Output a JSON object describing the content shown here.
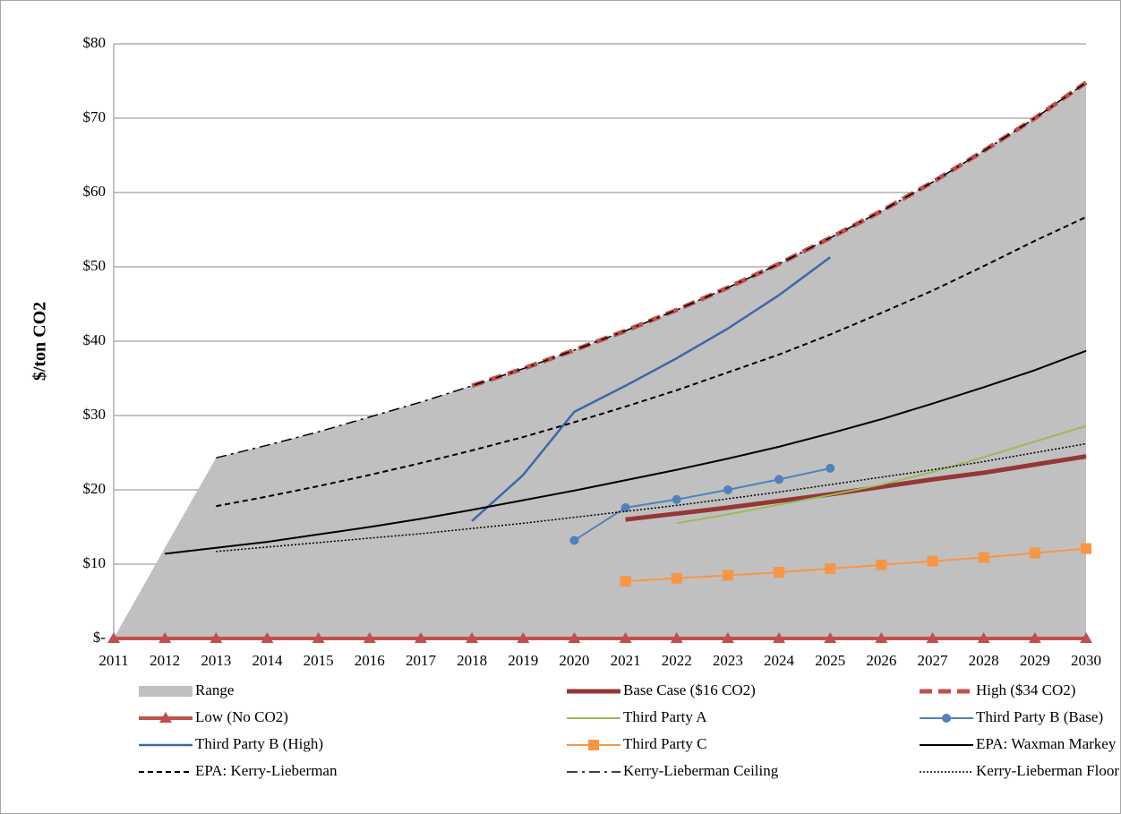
{
  "chart_data": {
    "type": "line",
    "y_label": "$/ton CO2",
    "categories": [
      "2011",
      "2012",
      "2013",
      "2014",
      "2015",
      "2016",
      "2017",
      "2018",
      "2019",
      "2020",
      "2021",
      "2022",
      "2023",
      "2024",
      "2025",
      "2026",
      "2027",
      "2028",
      "2029",
      "2030"
    ],
    "ylim": [
      0,
      80
    ],
    "yticks": [
      {
        "value": 0,
        "label": "$-"
      },
      {
        "value": 10,
        "label": "$10"
      },
      {
        "value": 20,
        "label": "$20"
      },
      {
        "value": 30,
        "label": "$30"
      },
      {
        "value": 40,
        "label": "$40"
      },
      {
        "value": 50,
        "label": "$50"
      },
      {
        "value": 60,
        "label": "$60"
      },
      {
        "value": 70,
        "label": "$70"
      },
      {
        "value": 80,
        "label": "$80"
      }
    ],
    "grid": true,
    "legend": "bottom",
    "series": [
      {
        "name": "Range",
        "type": "area",
        "color": "#c0c0c0",
        "values": [
          0,
          12.2,
          24.3,
          26,
          27.8,
          29.8,
          31.8,
          34,
          36.3,
          38.8,
          41.4,
          44.2,
          47.2,
          50.4,
          53.9,
          57.5,
          61.4,
          65.6,
          70,
          74.8
        ]
      },
      {
        "name": "Base Case ($16 CO2)",
        "color": "#953735",
        "width": 5,
        "line_style": "solid",
        "values": [
          null,
          null,
          null,
          null,
          null,
          null,
          null,
          null,
          null,
          null,
          16,
          16.8,
          17.6,
          18.5,
          19.4,
          20.4,
          21.4,
          22.3,
          23.4,
          24.5
        ]
      },
      {
        "name": "High ($34 CO2)",
        "color": "#c0504d",
        "width": 5,
        "line_style": "dashed",
        "values": [
          null,
          null,
          null,
          null,
          null,
          null,
          null,
          34,
          36.3,
          38.8,
          41.4,
          44.2,
          47.2,
          50.4,
          53.9,
          57.5,
          61.4,
          65.6,
          70,
          74.8
        ]
      },
      {
        "name": "Low (No CO2)",
        "color": "#c0504d",
        "width": 4,
        "line_style": "solid",
        "marker": "triangle",
        "values": [
          0,
          0,
          0,
          0,
          0,
          0,
          0,
          0,
          0,
          0,
          0,
          0,
          0,
          0,
          0,
          0,
          0,
          0,
          0,
          0
        ]
      },
      {
        "name": "Third Party A",
        "color": "#9bbb59",
        "width": 2,
        "line_style": "solid",
        "values": [
          null,
          null,
          null,
          null,
          null,
          null,
          null,
          null,
          null,
          null,
          null,
          15.5,
          16.7,
          18,
          19.3,
          20.7,
          22.4,
          24.4,
          26.5,
          28.6
        ]
      },
      {
        "name": "Third Party B (Base)",
        "color": "#4f81bd",
        "width": 2,
        "line_style": "solid",
        "marker": "circle",
        "values": [
          null,
          null,
          null,
          null,
          null,
          null,
          null,
          null,
          null,
          13.2,
          17.6,
          18.7,
          20,
          21.4,
          22.9,
          null,
          null,
          null,
          null,
          null
        ]
      },
      {
        "name": "Third Party B (High)",
        "color": "#3d68a8",
        "width": 2.5,
        "line_style": "solid",
        "values": [
          null,
          null,
          null,
          null,
          null,
          null,
          null,
          15.8,
          22,
          30.5,
          34,
          37.7,
          41.7,
          46.2,
          51.3,
          null,
          null,
          null,
          null,
          null
        ]
      },
      {
        "name": "Third Party C",
        "color": "#f79646",
        "width": 2,
        "line_style": "solid",
        "marker": "square",
        "values": [
          null,
          null,
          null,
          null,
          null,
          null,
          null,
          null,
          null,
          null,
          7.7,
          8.1,
          8.5,
          8.9,
          9.4,
          9.9,
          10.4,
          10.9,
          11.5,
          12.1
        ]
      },
      {
        "name": "EPA: Waxman Markey",
        "color": "#000000",
        "width": 2,
        "line_style": "solid",
        "values": [
          null,
          11.4,
          12.2,
          13,
          14,
          15,
          16.1,
          17.3,
          18.6,
          19.9,
          21.3,
          22.7,
          24.2,
          25.8,
          27.6,
          29.5,
          31.6,
          33.8,
          36.1,
          38.7
        ]
      },
      {
        "name": "EPA: Kerry-Lieberman",
        "color": "#000000",
        "width": 2,
        "line_style": "dashed",
        "values": [
          null,
          null,
          17.8,
          19.1,
          20.5,
          22,
          23.6,
          25.3,
          27.1,
          29.1,
          31.2,
          33.4,
          35.8,
          38.2,
          40.9,
          43.8,
          46.8,
          50.1,
          53.5,
          56.7
        ]
      },
      {
        "name": "Kerry-Lieberman Ceiling",
        "color": "#000000",
        "width": 1.5,
        "line_style": "dashdot",
        "values": [
          null,
          null,
          24.3,
          26,
          27.8,
          29.8,
          31.8,
          34,
          36.3,
          38.8,
          41.4,
          44.2,
          47.2,
          50.4,
          53.9,
          57.5,
          61.4,
          65.6,
          70,
          74.8
        ]
      },
      {
        "name": "Kerry-Lieberman Floor",
        "color": "#000000",
        "width": 1.5,
        "line_style": "dotted",
        "values": [
          null,
          null,
          11.7,
          12.3,
          12.9,
          13.5,
          14.1,
          14.8,
          15.5,
          16.3,
          17.1,
          17.9,
          18.8,
          19.7,
          20.7,
          21.7,
          22.7,
          23.8,
          25,
          26.2
        ]
      }
    ]
  }
}
